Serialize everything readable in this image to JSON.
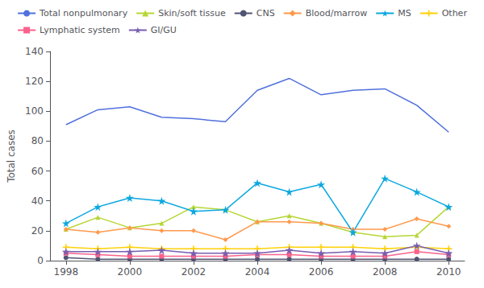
{
  "chart_data": {
    "type": "line",
    "x": [
      1998,
      1999,
      2000,
      2001,
      2002,
      2003,
      2004,
      2005,
      2006,
      2007,
      2008,
      2009,
      2010
    ],
    "series": [
      {
        "name": "Total nonpulmonary",
        "marker": "none",
        "values": [
          91,
          101,
          103,
          96,
          95,
          93,
          114,
          122,
          111,
          114,
          115,
          104,
          86
        ]
      },
      {
        "name": "Skin/soft tissue",
        "marker": "triangle",
        "values": [
          21,
          29,
          22,
          25,
          36,
          34,
          26,
          30,
          25,
          19,
          16,
          17,
          36
        ]
      },
      {
        "name": "CNS",
        "marker": "circle",
        "values": [
          2,
          1,
          1,
          1,
          1,
          1,
          1,
          1,
          1,
          1,
          1,
          1,
          1
        ]
      },
      {
        "name": "Blood/marrow",
        "marker": "diamond",
        "values": [
          21,
          19,
          22,
          20,
          20,
          14,
          26,
          26,
          25,
          21,
          21,
          28,
          23
        ]
      },
      {
        "name": "MS",
        "marker": "star",
        "values": [
          25,
          36,
          42,
          40,
          33,
          34,
          52,
          46,
          51,
          19,
          55,
          46,
          36
        ]
      },
      {
        "name": "Other",
        "marker": "plus",
        "values": [
          9,
          8,
          9,
          8,
          8,
          8,
          8,
          9,
          9,
          9,
          8,
          9,
          8
        ]
      },
      {
        "name": "Lymphatic system",
        "marker": "square",
        "values": [
          5,
          4,
          3,
          3,
          3,
          3,
          4,
          4,
          3,
          3,
          3,
          6,
          4
        ]
      },
      {
        "name": "GI/GU",
        "marker": "star",
        "values": [
          6,
          6,
          6,
          7,
          5,
          5,
          5,
          7,
          5,
          6,
          5,
          10,
          5
        ]
      }
    ],
    "ylabel": "Total cases",
    "ylim": [
      0,
      140
    ],
    "yticks": [
      0,
      20,
      40,
      60,
      80,
      100,
      120,
      140
    ],
    "xlim": [
      1997.5,
      2010.5
    ],
    "xticks": [
      1998,
      2000,
      2002,
      2004,
      2006,
      2008,
      2010
    ],
    "grid": false,
    "legend": "top"
  }
}
